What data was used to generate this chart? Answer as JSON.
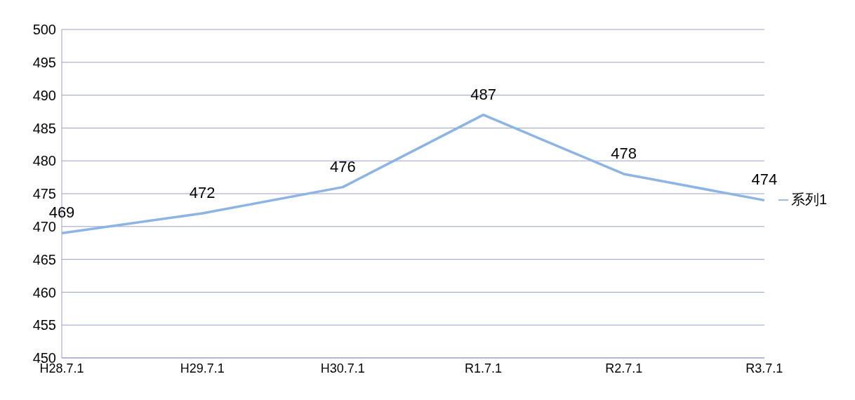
{
  "chart_data": {
    "type": "line",
    "categories": [
      "H28.7.1",
      "H29.7.1",
      "H30.7.1",
      "R1.7.1",
      "R2.7.1",
      "R3.7.1"
    ],
    "series": [
      {
        "name": "系列1",
        "color": "#8db4e2",
        "values": [
          469,
          472,
          476,
          487,
          478,
          474
        ]
      }
    ],
    "ylim": [
      450,
      500
    ],
    "yticks": [
      450,
      455,
      460,
      465,
      470,
      475,
      480,
      485,
      490,
      495,
      500
    ],
    "grid": "y",
    "legend": "right",
    "data_labels": true,
    "marker": "none"
  }
}
